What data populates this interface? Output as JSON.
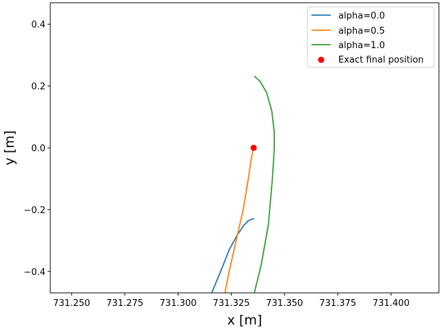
{
  "chart_data": {
    "type": "line",
    "title": "",
    "xlabel": "x [m]",
    "ylabel": "y [m]",
    "xlim": [
      731.24,
      731.4225
    ],
    "ylim": [
      -0.4695,
      0.4695
    ],
    "xticks": [
      731.25,
      731.275,
      731.3,
      731.325,
      731.35,
      731.375,
      731.4
    ],
    "xtick_labels": [
      "731.250",
      "731.275",
      "731.300",
      "731.325",
      "731.350",
      "731.375",
      "731.400"
    ],
    "yticks": [
      -0.4,
      -0.2,
      0.0,
      0.2,
      0.4
    ],
    "ytick_labels": [
      "−0.4",
      "−0.2",
      "0.0",
      "0.2",
      "0.4"
    ],
    "grid": false,
    "legend_position": "top-right",
    "series": [
      {
        "name": "alpha=0.0",
        "color": "#1f77b4",
        "x": [
          731.3158,
          731.32,
          731.324,
          731.328,
          731.331,
          731.333,
          731.3345,
          731.3355
        ],
        "y": [
          -0.4695,
          -0.4,
          -0.33,
          -0.28,
          -0.25,
          -0.236,
          -0.231,
          -0.23
        ]
      },
      {
        "name": "alpha=0.5",
        "color": "#ff7f0e",
        "x": [
          731.322,
          731.324,
          731.3273,
          731.3306,
          731.333,
          731.3345,
          731.3355
        ],
        "y": [
          -0.4695,
          -0.4,
          -0.3,
          -0.2,
          -0.1,
          -0.03,
          0.0
        ]
      },
      {
        "name": "alpha=1.0",
        "color": "#2ca02c",
        "x": [
          731.3358,
          731.339,
          731.3424,
          731.3443,
          731.3452,
          731.3452,
          731.344,
          731.3415,
          731.3385,
          731.336
        ],
        "y": [
          -0.4695,
          -0.38,
          -0.25,
          -0.1,
          0.0,
          0.05,
          0.12,
          0.18,
          0.215,
          0.231
        ]
      }
    ],
    "scatter": {
      "name": "Exact final position",
      "color": "#ff0000",
      "x": 731.3355,
      "y": 0.0
    }
  }
}
